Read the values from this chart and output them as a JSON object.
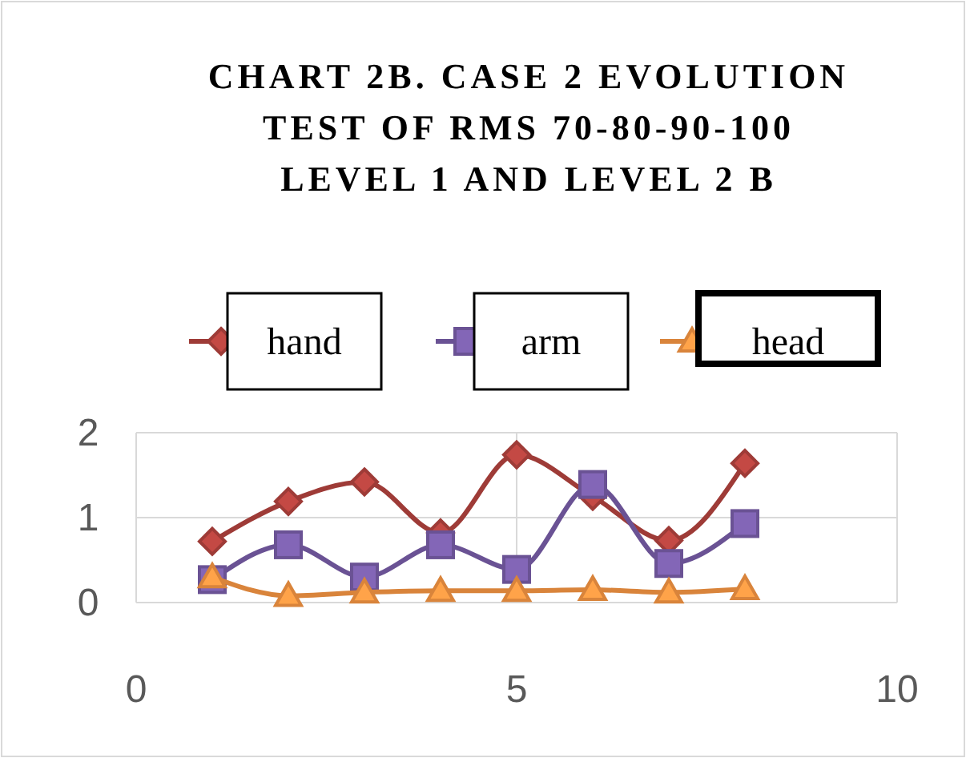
{
  "chart_data": {
    "type": "line",
    "title": "CHART 2B. CASE 2 EVOLUTION TEST OF RMS 70-80-90-100 LEVEL 1 AND LEVEL 2 B",
    "x": [
      1,
      2,
      3,
      4,
      5,
      6,
      7,
      8
    ],
    "series": [
      {
        "name": "hand",
        "color": "#9e3b37",
        "marker": "diamond",
        "values": [
          0.72,
          1.19,
          1.42,
          0.82,
          1.74,
          1.25,
          0.73,
          1.64
        ]
      },
      {
        "name": "arm",
        "color": "#6a5294",
        "marker": "square",
        "values": [
          0.27,
          0.68,
          0.3,
          0.68,
          0.39,
          1.39,
          0.46,
          0.93
        ]
      },
      {
        "name": "head",
        "color": "#d9843b",
        "marker": "triangle",
        "values": [
          0.3,
          0.08,
          0.12,
          0.14,
          0.14,
          0.15,
          0.12,
          0.16
        ]
      }
    ],
    "xlim": [
      0,
      10
    ],
    "xticks": [
      0,
      5,
      10
    ],
    "ylim": [
      0,
      2
    ],
    "yticks": [
      0,
      1,
      2
    ],
    "grid": true,
    "legend": "top"
  }
}
